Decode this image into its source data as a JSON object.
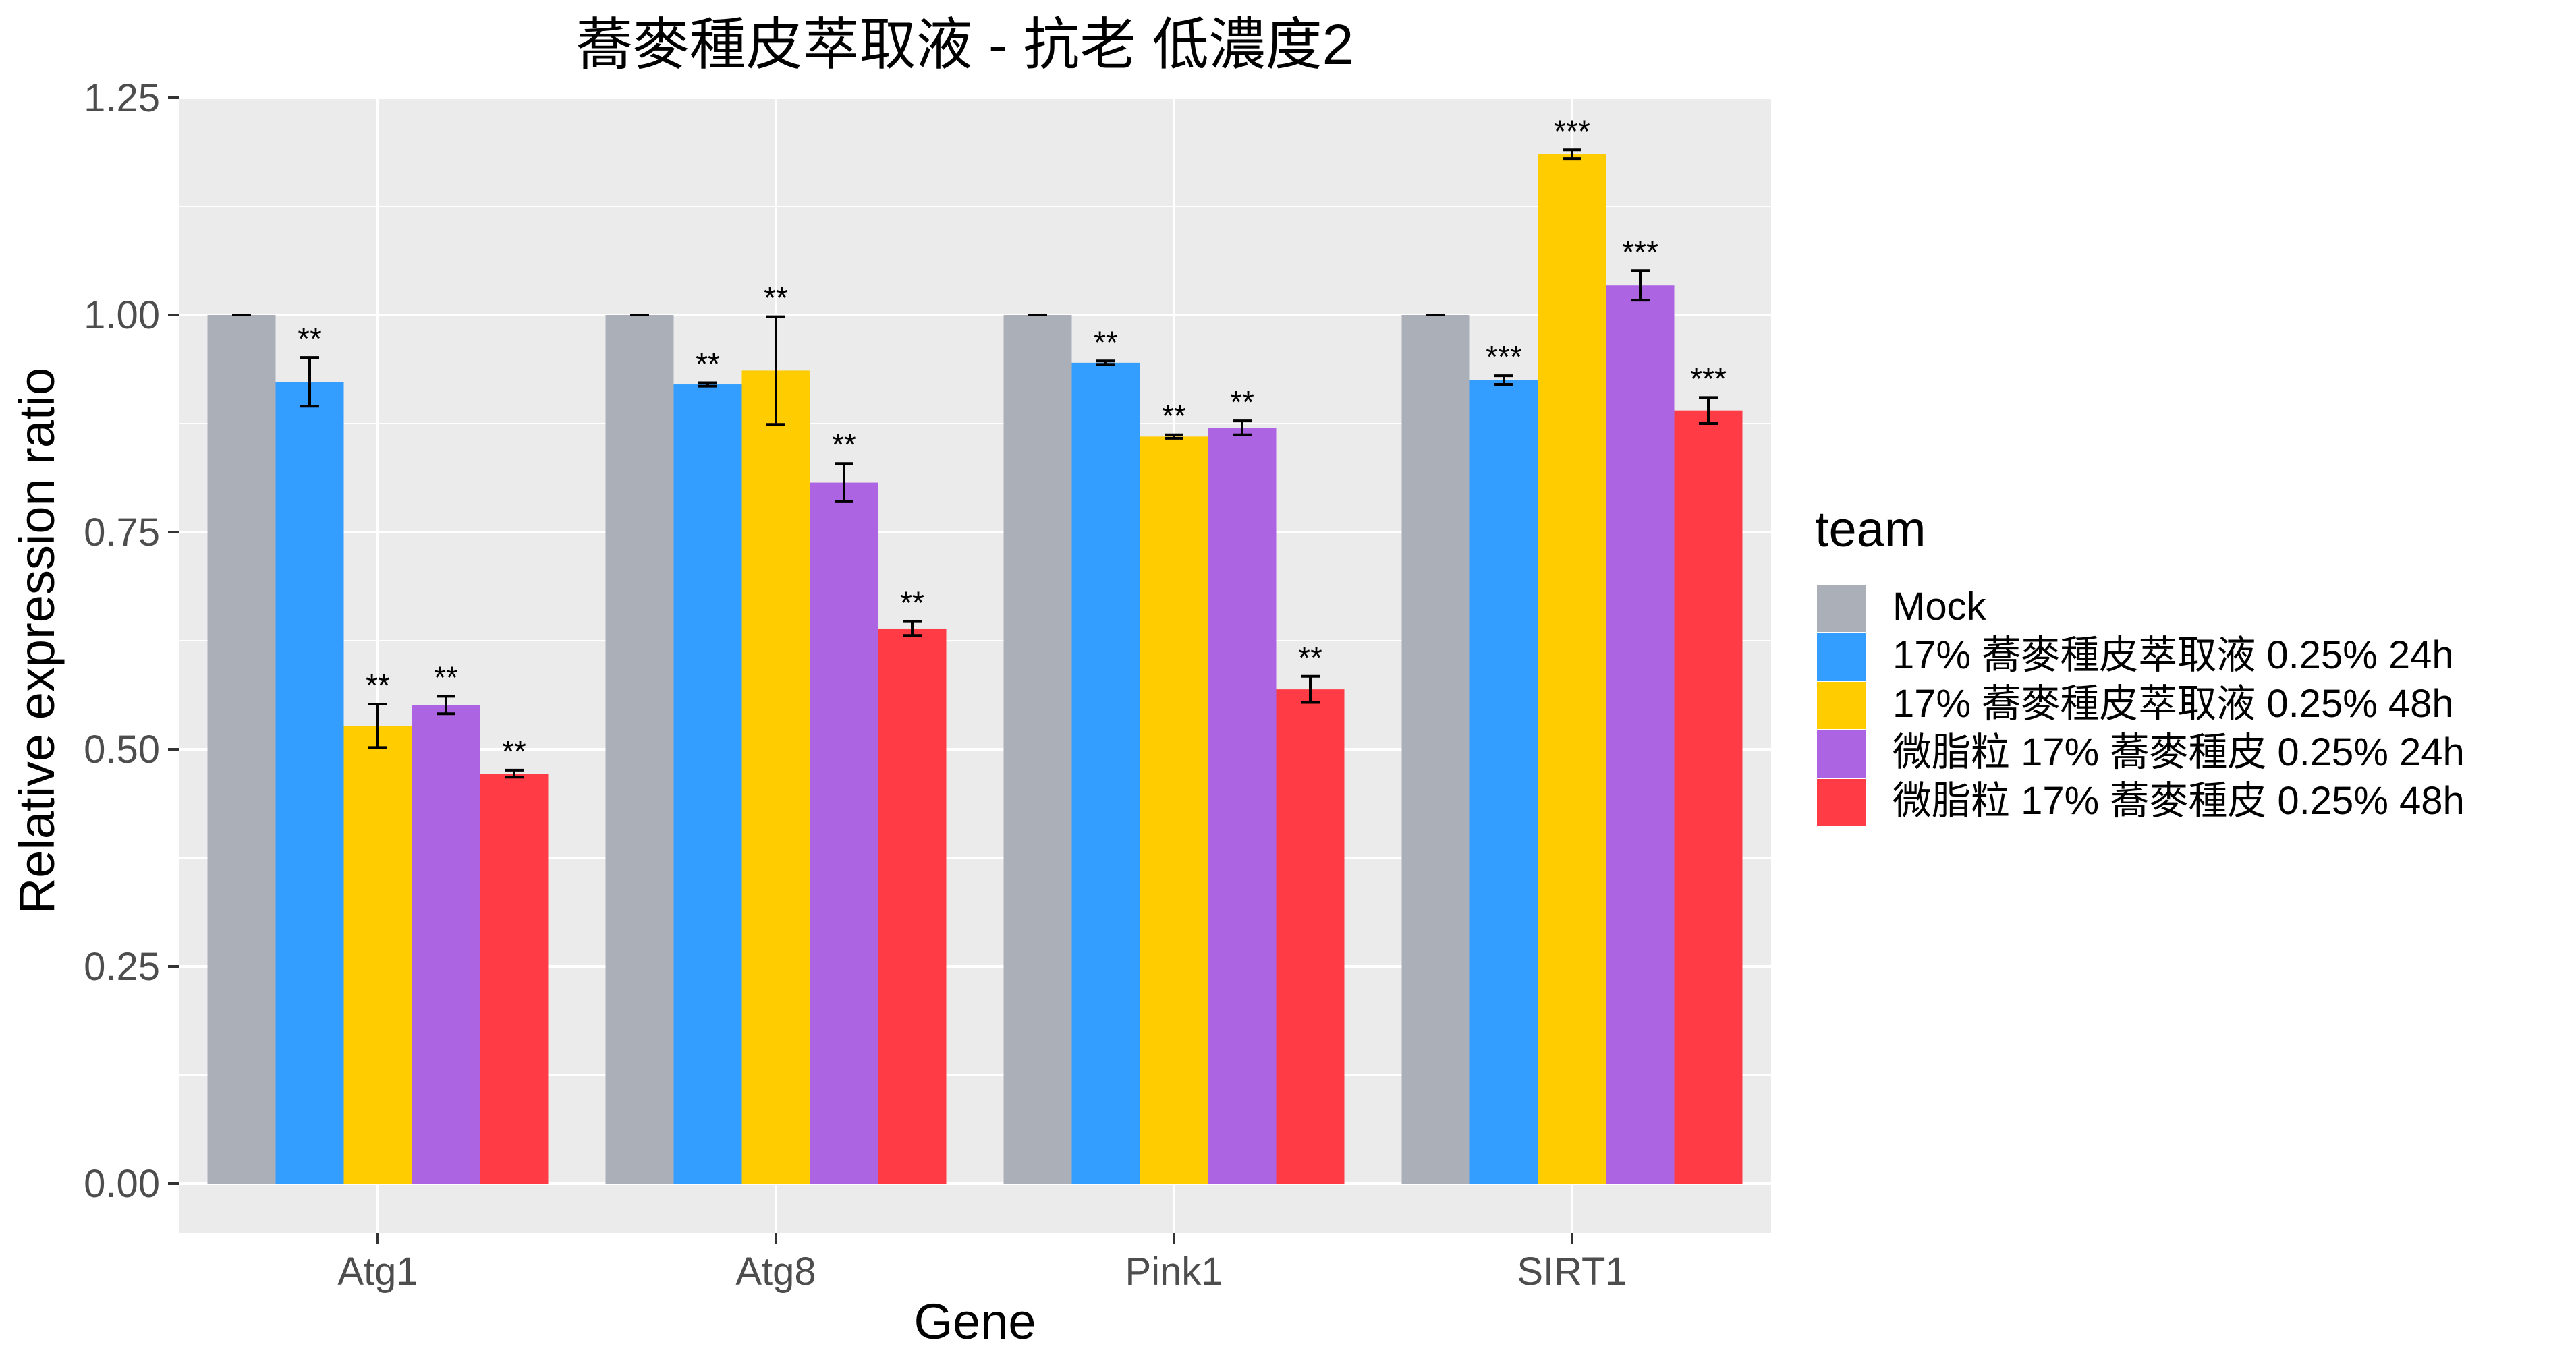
{
  "chart_data": {
    "type": "bar",
    "title": "蕎麥種皮萃取液 - 抗老 低濃度2",
    "xlabel": "Gene",
    "ylabel": "Relative expression ratio",
    "ylim": [
      0,
      1.25
    ],
    "yticks": [
      "0.00",
      "0.25",
      "0.50",
      "0.75",
      "1.00",
      "1.25"
    ],
    "grid": true,
    "legend_title": "team",
    "legend_position": "right",
    "categories": [
      "Atg1",
      "Atg8",
      "Pink1",
      "SIRT1"
    ],
    "series": [
      {
        "name": "Mock",
        "color": "#ABB0B8",
        "values": [
          1.0,
          1.0,
          1.0,
          1.0
        ],
        "errors": [
          0.0,
          0.0,
          0.0,
          0.0
        ],
        "sig": [
          "",
          "",
          "",
          ""
        ]
      },
      {
        "name": "17% 蕎麥種皮萃取液 0.25% 24h",
        "color": "#339EFF",
        "values": [
          0.923,
          0.92,
          0.945,
          0.925
        ],
        "errors": [
          0.028,
          0.002,
          0.002,
          0.005
        ],
        "sig": [
          "**",
          "**",
          "**",
          "***"
        ]
      },
      {
        "name": "17% 蕎麥種皮萃取液 0.25% 48h",
        "color": "#FFCC00",
        "values": [
          0.527,
          0.936,
          0.86,
          1.185
        ],
        "errors": [
          0.025,
          0.062,
          0.002,
          0.005
        ],
        "sig": [
          "**",
          "**",
          "**",
          "***"
        ]
      },
      {
        "name": "微脂粒 17% 蕎麥種皮 0.25% 24h",
        "color": "#AD64E3",
        "values": [
          0.551,
          0.807,
          0.87,
          1.034
        ],
        "errors": [
          0.01,
          0.022,
          0.008,
          0.017
        ],
        "sig": [
          "**",
          "**",
          "**",
          "***"
        ]
      },
      {
        "name": "微脂粒 17% 蕎麥種皮 0.25% 48h",
        "color": "#FF3B45",
        "values": [
          0.472,
          0.639,
          0.569,
          0.89
        ],
        "errors": [
          0.004,
          0.008,
          0.015,
          0.015
        ],
        "sig": [
          "**",
          "**",
          "**",
          "***"
        ]
      }
    ]
  }
}
